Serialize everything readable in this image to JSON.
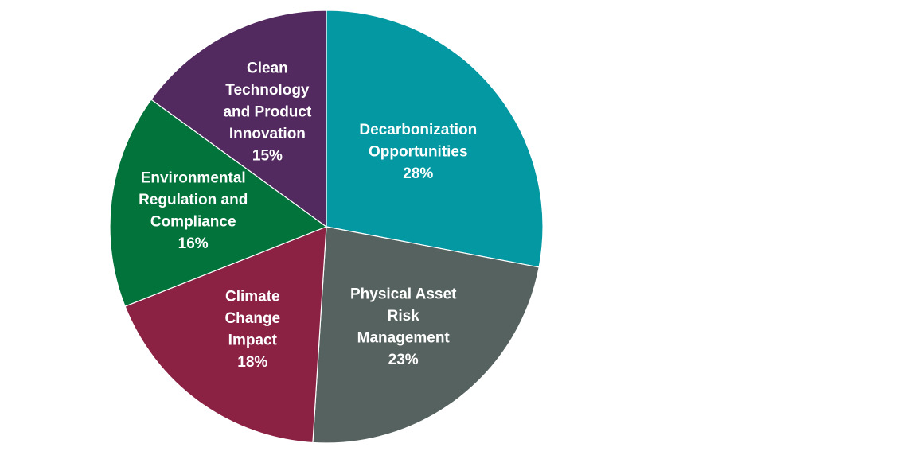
{
  "chart_data": {
    "type": "pie",
    "title": "",
    "start_angle_deg": 0,
    "direction": "clockwise",
    "legend": "none",
    "slices": [
      {
        "label_lines": [
          "Decarbonization",
          "Opportunities"
        ],
        "value": 28,
        "value_label": "28%",
        "color": "#0398a2"
      },
      {
        "label_lines": [
          "Physical Asset",
          "Risk",
          "Management"
        ],
        "value": 23,
        "value_label": "23%",
        "color": "#56625f"
      },
      {
        "label_lines": [
          "Climate",
          "Change",
          "Impact"
        ],
        "value": 18,
        "value_label": "18%",
        "color": "#8b2143"
      },
      {
        "label_lines": [
          "Environmental",
          "Regulation and",
          "Compliance"
        ],
        "value": 16,
        "value_label": "16%",
        "color": "#02733a"
      },
      {
        "label_lines": [
          "Clean",
          "Technology",
          "and Product",
          "Innovation"
        ],
        "value": 15,
        "value_label": "15%",
        "color": "#532a60"
      }
    ]
  }
}
